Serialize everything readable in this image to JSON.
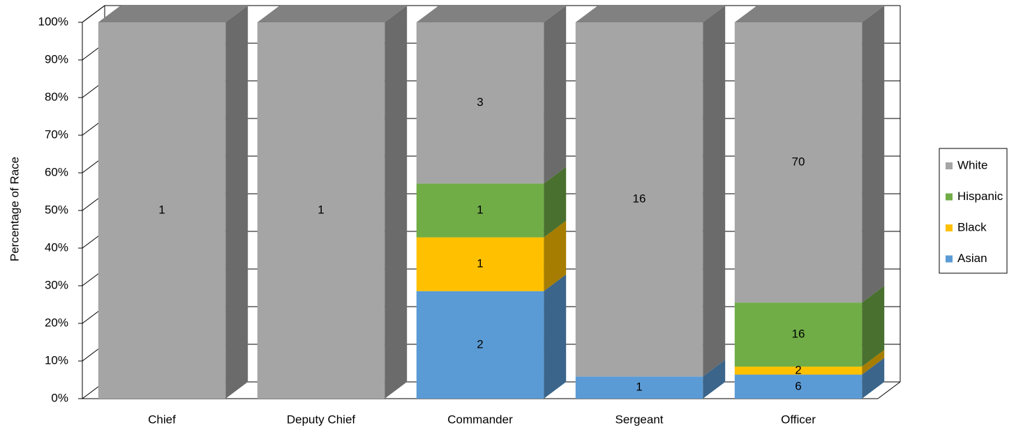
{
  "chart_data": {
    "type": "bar",
    "stacking": "percent",
    "three_d": true,
    "grid": true,
    "legend": "right",
    "y_label": "Percentage of Race",
    "categories": [
      "Chief",
      "Deputy Chief",
      "Commander",
      "Sergeant",
      "Officer"
    ],
    "series": [
      {
        "name": "Asian",
        "color": "#5b9bd5",
        "values": [
          null,
          null,
          2,
          1,
          6
        ]
      },
      {
        "name": "Black",
        "color": "#ffc000",
        "values": [
          null,
          null,
          1,
          null,
          2
        ]
      },
      {
        "name": "Hispanic",
        "color": "#70ad47",
        "values": [
          null,
          null,
          1,
          null,
          16
        ]
      },
      {
        "name": "White",
        "color": "#a5a5a5",
        "values": [
          1,
          1,
          3,
          16,
          70
        ]
      }
    ],
    "ylim": [
      0,
      100
    ],
    "yticks": [
      {
        "value": 0,
        "label": "0%"
      },
      {
        "value": 10,
        "label": "10%"
      },
      {
        "value": 20,
        "label": "20%"
      },
      {
        "value": 30,
        "label": "30%"
      },
      {
        "value": 40,
        "label": "40%"
      },
      {
        "value": 50,
        "label": "50%"
      },
      {
        "value": 60,
        "label": "60%"
      },
      {
        "value": 70,
        "label": "70%"
      },
      {
        "value": 80,
        "label": "80%"
      },
      {
        "value": 90,
        "label": "90%"
      },
      {
        "value": 100,
        "label": "100%"
      }
    ]
  }
}
